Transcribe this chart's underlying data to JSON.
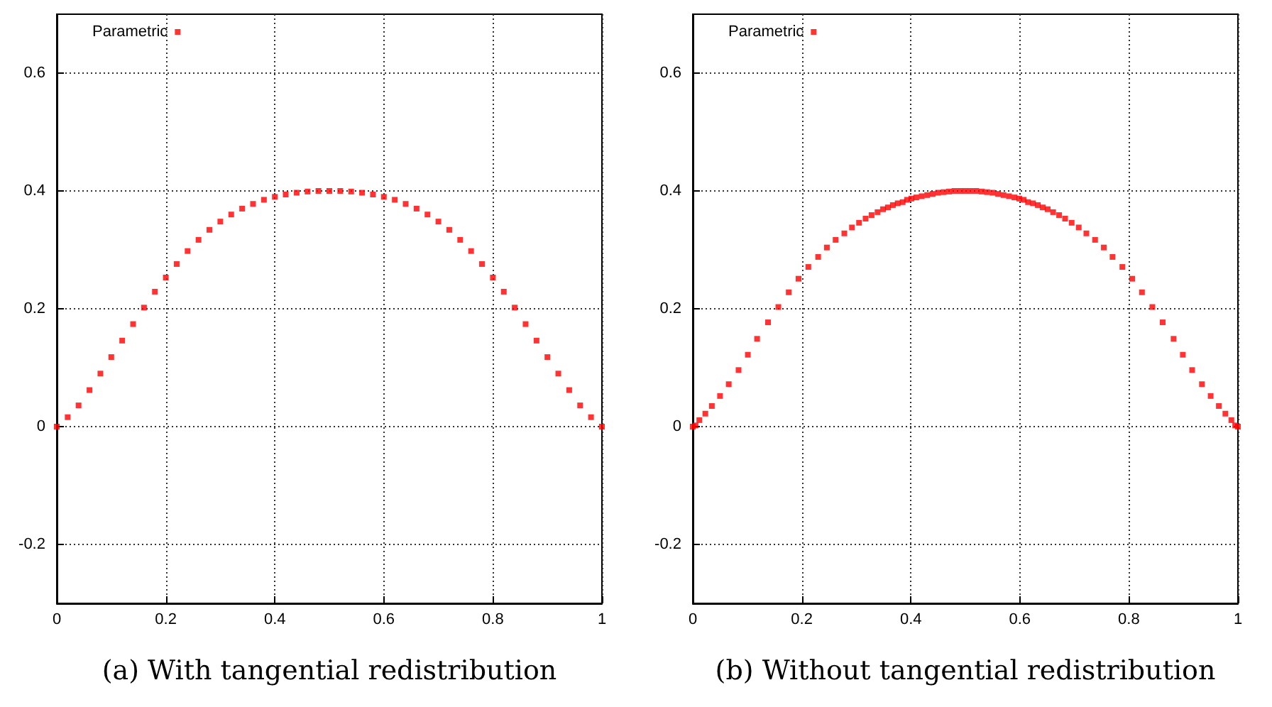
{
  "chart_data": [
    {
      "type": "scatter",
      "xlabel": "(a) With tangential redistribution",
      "xlim": [
        0,
        1
      ],
      "xticks": [
        0,
        0.2,
        0.4,
        0.6,
        0.8,
        1
      ],
      "ylim": [
        -0.3,
        0.7
      ],
      "yticks": [
        -0.2,
        0,
        0.2,
        0.4,
        0.6
      ],
      "grid": true,
      "legend": "top left",
      "marker": "square",
      "series": [
        {
          "name": "Parametric",
          "color": "#ff0000",
          "x": [
            0,
            0.02,
            0.04,
            0.06,
            0.08,
            0.1,
            0.12,
            0.14,
            0.16,
            0.18,
            0.2,
            0.22,
            0.24,
            0.26,
            0.28,
            0.3,
            0.32,
            0.34,
            0.36,
            0.38,
            0.4,
            0.42,
            0.44,
            0.46,
            0.48,
            0.5,
            0.52,
            0.54,
            0.56,
            0.58,
            0.6,
            0.62,
            0.64,
            0.66,
            0.68,
            0.7,
            0.72,
            0.74,
            0.76,
            0.78,
            0.8,
            0.82,
            0.84,
            0.86,
            0.88,
            0.9,
            0.92,
            0.94,
            0.96,
            0.98,
            1
          ],
          "values": [
            0,
            0.016,
            0.036,
            0.062,
            0.09,
            0.118,
            0.146,
            0.174,
            0.202,
            0.229,
            0.253,
            0.276,
            0.298,
            0.317,
            0.334,
            0.348,
            0.36,
            0.37,
            0.378,
            0.385,
            0.39,
            0.394,
            0.397,
            0.399,
            0.4,
            0.4,
            0.4,
            0.399,
            0.397,
            0.394,
            0.39,
            0.385,
            0.378,
            0.37,
            0.36,
            0.348,
            0.334,
            0.317,
            0.298,
            0.276,
            0.253,
            0.229,
            0.202,
            0.174,
            0.146,
            0.118,
            0.09,
            0.062,
            0.036,
            0.016,
            0
          ]
        }
      ]
    },
    {
      "type": "scatter",
      "xlabel": "(b) Without tangential redistribution",
      "xlim": [
        0,
        1
      ],
      "xticks": [
        0,
        0.2,
        0.4,
        0.6,
        0.8,
        1
      ],
      "ylim": [
        -0.3,
        0.7
      ],
      "yticks": [
        -0.2,
        0,
        0.2,
        0.4,
        0.6
      ],
      "grid": true,
      "legend": "top left",
      "marker": "square",
      "series": [
        {
          "name": "Parametric",
          "color": "#ff0000",
          "x": [
            0,
            0.005,
            0.012,
            0.023,
            0.035,
            0.05,
            0.066,
            0.084,
            0.101,
            0.118,
            0.138,
            0.157,
            0.176,
            0.194,
            0.212,
            0.23,
            0.246,
            0.262,
            0.278,
            0.292,
            0.305,
            0.317,
            0.328,
            0.339,
            0.349,
            0.358,
            0.367,
            0.376,
            0.385,
            0.393,
            0.401,
            0.41,
            0.42,
            0.43,
            0.44,
            0.45,
            0.46,
            0.47,
            0.48,
            0.49,
            0.5,
            0.51,
            0.52,
            0.53,
            0.54,
            0.55,
            0.56,
            0.57,
            0.58,
            0.59,
            0.599,
            0.607,
            0.615,
            0.624,
            0.633,
            0.642,
            0.651,
            0.661,
            0.672,
            0.683,
            0.695,
            0.708,
            0.722,
            0.738,
            0.754,
            0.77,
            0.788,
            0.806,
            0.824,
            0.843,
            0.862,
            0.882,
            0.899,
            0.916,
            0.934,
            0.95,
            0.965,
            0.977,
            0.988,
            0.995,
            1
          ],
          "values": [
            0,
            0.002,
            0.011,
            0.022,
            0.035,
            0.052,
            0.072,
            0.096,
            0.122,
            0.149,
            0.177,
            0.203,
            0.228,
            0.251,
            0.271,
            0.288,
            0.304,
            0.317,
            0.328,
            0.338,
            0.346,
            0.353,
            0.359,
            0.364,
            0.369,
            0.372,
            0.376,
            0.379,
            0.381,
            0.385,
            0.387,
            0.389,
            0.391,
            0.393,
            0.395,
            0.397,
            0.398,
            0.399,
            0.4,
            0.4,
            0.4,
            0.4,
            0.4,
            0.399,
            0.398,
            0.397,
            0.395,
            0.393,
            0.391,
            0.389,
            0.387,
            0.385,
            0.381,
            0.379,
            0.376,
            0.372,
            0.369,
            0.364,
            0.359,
            0.353,
            0.346,
            0.338,
            0.328,
            0.317,
            0.304,
            0.288,
            0.271,
            0.251,
            0.228,
            0.203,
            0.177,
            0.149,
            0.122,
            0.096,
            0.072,
            0.052,
            0.035,
            0.022,
            0.011,
            0.002,
            0
          ]
        }
      ]
    }
  ]
}
